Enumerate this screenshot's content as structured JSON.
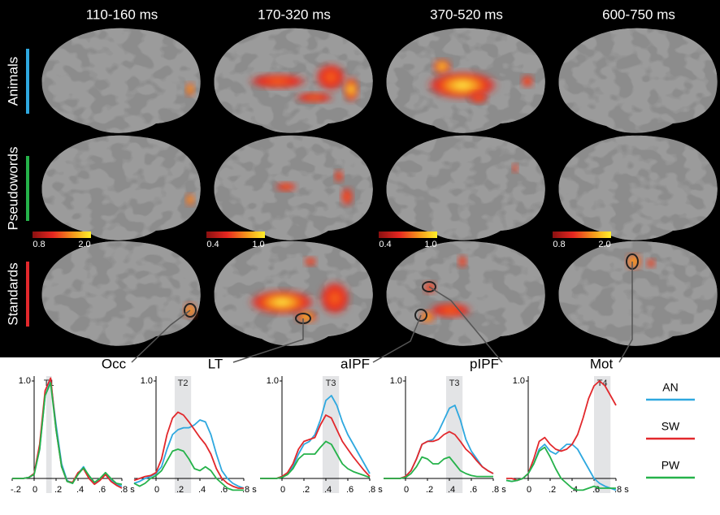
{
  "column_headers": [
    "110-160 ms",
    "170-320 ms",
    "370-520 ms",
    "600-750 ms"
  ],
  "row_labels": [
    {
      "text": "Animals",
      "color": "#2ea8df"
    },
    {
      "text": "Pseudowords",
      "color": "#25b24a"
    },
    {
      "text": "Standards",
      "color": "#e2282c"
    }
  ],
  "colorbars": [
    {
      "ticks": [
        0.8,
        {
          "value": 2,
          "label": "2.0"
        }
      ]
    },
    {
      "ticks": [
        0.4,
        {
          "value": 1,
          "label": "1.0"
        }
      ]
    },
    {
      "ticks": [
        0.4,
        {
          "value": 1,
          "label": "1.0"
        }
      ]
    },
    {
      "ticks": [
        0.8,
        {
          "value": 2,
          "label": "2.0"
        }
      ]
    }
  ],
  "legend": [
    {
      "name": "AN",
      "color": "#2ea8df"
    },
    {
      "name": "SW",
      "color": "#e2282c"
    },
    {
      "name": "PW",
      "color": "#25b24a"
    }
  ],
  "chart_data": [
    {
      "type": "line",
      "title": "Occ",
      "shade": {
        "label": "T1",
        "range": [
          0.11,
          0.16
        ]
      },
      "x": [
        -0.2,
        -0.15,
        -0.1,
        -0.05,
        0,
        0.05,
        0.1,
        0.15,
        0.2,
        0.25,
        0.3,
        0.35,
        0.4,
        0.45,
        0.5,
        0.55,
        0.6,
        0.65,
        0.7,
        0.75,
        0.8
      ],
      "series": [
        {
          "color": "#2ea8df",
          "values": [
            0,
            0,
            0,
            0.01,
            0.05,
            0.3,
            0.85,
            1.0,
            0.55,
            0.15,
            -0.02,
            -0.05,
            0.05,
            0.12,
            0.02,
            -0.05,
            0.0,
            0.05,
            -0.02,
            -0.06,
            -0.08
          ]
        },
        {
          "color": "#e2282c",
          "values": [
            0,
            0,
            0,
            0.01,
            0.05,
            0.35,
            0.9,
            1.03,
            0.5,
            0.12,
            -0.03,
            -0.04,
            0.06,
            0.1,
            0.0,
            -0.06,
            -0.02,
            0.04,
            -0.03,
            -0.07,
            -0.1
          ]
        },
        {
          "color": "#25b24a",
          "values": [
            0,
            0,
            0,
            0.01,
            0.04,
            0.3,
            0.85,
            0.98,
            0.5,
            0.12,
            -0.03,
            -0.05,
            0.04,
            0.11,
            0.03,
            -0.04,
            0.0,
            0.06,
            0.0,
            -0.05,
            -0.06
          ]
        }
      ],
      "xlim": [
        -0.2,
        0.8
      ],
      "ylim": [
        -0.15,
        1.05
      ],
      "xticks": [
        {
          "value": -0.2,
          "label": "-.2"
        },
        0,
        {
          "value": 0.2,
          "label": ".2"
        },
        {
          "value": 0.4,
          "label": ".4"
        },
        {
          "value": 0.6,
          "label": ".6"
        },
        {
          "value": 0.8,
          "label": ".8 s"
        }
      ],
      "yticks": [
        {
          "value": 1,
          "label": "1.0"
        }
      ]
    },
    {
      "type": "line",
      "title": "LT",
      "shade": {
        "label": "T2",
        "range": [
          0.17,
          0.32
        ]
      },
      "x": [
        -0.2,
        -0.15,
        -0.1,
        -0.05,
        0,
        0.05,
        0.1,
        0.15,
        0.2,
        0.25,
        0.3,
        0.35,
        0.4,
        0.45,
        0.5,
        0.55,
        0.6,
        0.65,
        0.7,
        0.75,
        0.8
      ],
      "series": [
        {
          "color": "#2ea8df",
          "values": [
            -0.05,
            -0.03,
            0,
            0.02,
            0.05,
            0.12,
            0.3,
            0.45,
            0.5,
            0.52,
            0.52,
            0.55,
            0.6,
            0.58,
            0.45,
            0.25,
            0.08,
            0.0,
            -0.05,
            -0.08,
            -0.1
          ]
        },
        {
          "color": "#e2282c",
          "values": [
            -0.02,
            0,
            0.02,
            0.03,
            0.06,
            0.2,
            0.45,
            0.62,
            0.68,
            0.65,
            0.58,
            0.5,
            0.42,
            0.35,
            0.25,
            0.1,
            0.0,
            -0.05,
            -0.08,
            -0.1,
            -0.1
          ]
        },
        {
          "color": "#25b24a",
          "values": [
            -0.05,
            -0.08,
            -0.05,
            0,
            0.03,
            0.08,
            0.18,
            0.28,
            0.3,
            0.28,
            0.2,
            0.1,
            0.08,
            0.12,
            0.08,
            0.0,
            -0.05,
            -0.1,
            -0.12,
            -0.12,
            -0.12
          ]
        }
      ],
      "xlim": [
        -0.2,
        0.8
      ],
      "ylim": [
        -0.15,
        1.05
      ],
      "xticks": [
        0,
        {
          "value": 0.2,
          "label": ".2"
        },
        {
          "value": 0.4,
          "label": ".4"
        },
        {
          "value": 0.6,
          "label": ".6"
        },
        {
          "value": 0.8,
          "label": ".8 s"
        }
      ],
      "yticks": [
        {
          "value": 1,
          "label": "1.0"
        }
      ]
    },
    {
      "type": "line",
      "title": "aIPF",
      "shade": {
        "label": "T3",
        "range": [
          0.37,
          0.52
        ]
      },
      "x": [
        -0.2,
        -0.15,
        -0.1,
        -0.05,
        0,
        0.05,
        0.1,
        0.15,
        0.2,
        0.25,
        0.3,
        0.35,
        0.4,
        0.45,
        0.5,
        0.55,
        0.6,
        0.65,
        0.7,
        0.75,
        0.8
      ],
      "series": [
        {
          "color": "#2ea8df",
          "values": [
            0,
            0,
            0,
            0,
            0.02,
            0.05,
            0.12,
            0.25,
            0.35,
            0.38,
            0.45,
            0.6,
            0.8,
            0.85,
            0.75,
            0.58,
            0.45,
            0.35,
            0.25,
            0.15,
            0.05
          ]
        },
        {
          "color": "#e2282c",
          "values": [
            0,
            0,
            0,
            0,
            0.02,
            0.06,
            0.15,
            0.3,
            0.38,
            0.4,
            0.42,
            0.55,
            0.65,
            0.62,
            0.5,
            0.38,
            0.3,
            0.22,
            0.15,
            0.08,
            0.02
          ]
        },
        {
          "color": "#25b24a",
          "values": [
            0,
            0,
            0,
            0,
            0.01,
            0.04,
            0.1,
            0.2,
            0.25,
            0.25,
            0.25,
            0.32,
            0.38,
            0.35,
            0.25,
            0.15,
            0.1,
            0.07,
            0.05,
            0.03,
            0.01
          ]
        }
      ],
      "xlim": [
        -0.2,
        0.8
      ],
      "ylim": [
        -0.15,
        1.05
      ],
      "xticks": [
        0,
        {
          "value": 0.2,
          "label": ".2"
        },
        {
          "value": 0.4,
          "label": ".4"
        },
        {
          "value": 0.6,
          "label": ".6"
        },
        {
          "value": 0.8,
          "label": ".8 s"
        }
      ],
      "yticks": [
        {
          "value": 1,
          "label": "1.0"
        }
      ]
    },
    {
      "type": "line",
      "title": "pIPF",
      "shade": {
        "label": "T3",
        "range": [
          0.37,
          0.52
        ]
      },
      "x": [
        -0.2,
        -0.15,
        -0.1,
        -0.05,
        0,
        0.05,
        0.1,
        0.15,
        0.2,
        0.25,
        0.3,
        0.35,
        0.4,
        0.45,
        0.5,
        0.55,
        0.6,
        0.65,
        0.7,
        0.75,
        0.8
      ],
      "series": [
        {
          "color": "#2ea8df",
          "values": [
            0,
            0,
            0,
            0,
            0.02,
            0.08,
            0.2,
            0.35,
            0.38,
            0.4,
            0.48,
            0.6,
            0.72,
            0.75,
            0.6,
            0.4,
            0.28,
            0.2,
            0.12,
            0.08,
            0.05
          ]
        },
        {
          "color": "#e2282c",
          "values": [
            0,
            0,
            0,
            0,
            0.02,
            0.08,
            0.2,
            0.35,
            0.38,
            0.38,
            0.4,
            0.45,
            0.48,
            0.45,
            0.38,
            0.3,
            0.25,
            0.18,
            0.12,
            0.08,
            0.05
          ]
        },
        {
          "color": "#25b24a",
          "values": [
            0,
            0,
            0,
            0,
            0.01,
            0.05,
            0.12,
            0.22,
            0.2,
            0.15,
            0.15,
            0.2,
            0.22,
            0.15,
            0.08,
            0.05,
            0.03,
            0.02,
            0.02,
            0.02,
            0.02
          ]
        }
      ],
      "xlim": [
        -0.2,
        0.8
      ],
      "ylim": [
        -0.15,
        1.05
      ],
      "xticks": [
        0,
        {
          "value": 0.2,
          "label": ".2"
        },
        {
          "value": 0.4,
          "label": ".4"
        },
        {
          "value": 0.6,
          "label": ".6"
        },
        {
          "value": 0.8,
          "label": ".8 s"
        }
      ],
      "yticks": [
        {
          "value": 1,
          "label": "1.0"
        }
      ]
    },
    {
      "type": "line",
      "title": "Mot",
      "shade": {
        "label": "T4",
        "range": [
          0.6,
          0.75
        ]
      },
      "x": [
        -0.2,
        -0.15,
        -0.1,
        -0.05,
        0,
        0.05,
        0.1,
        0.15,
        0.2,
        0.25,
        0.3,
        0.35,
        0.4,
        0.45,
        0.5,
        0.55,
        0.6,
        0.65,
        0.7,
        0.75,
        0.8
      ],
      "series": [
        {
          "color": "#2ea8df",
          "values": [
            -0.02,
            -0.03,
            -0.02,
            0,
            0.05,
            0.15,
            0.3,
            0.35,
            0.28,
            0.25,
            0.3,
            0.35,
            0.35,
            0.3,
            0.2,
            0.1,
            0.0,
            -0.05,
            -0.08,
            -0.1,
            -0.12
          ]
        },
        {
          "color": "#e2282c",
          "values": [
            0,
            0,
            -0.02,
            0,
            0.05,
            0.2,
            0.38,
            0.42,
            0.35,
            0.3,
            0.28,
            0.3,
            0.35,
            0.45,
            0.62,
            0.82,
            0.95,
            1.0,
            0.95,
            0.85,
            0.75
          ]
        },
        {
          "color": "#25b24a",
          "values": [
            -0.02,
            -0.03,
            -0.02,
            0,
            0.05,
            0.15,
            0.28,
            0.32,
            0.22,
            0.1,
            0.0,
            -0.05,
            -0.1,
            -0.12,
            -0.12,
            -0.1,
            -0.08,
            -0.1,
            -0.1,
            -0.1,
            -0.1
          ]
        }
      ],
      "xlim": [
        -0.2,
        0.8
      ],
      "ylim": [
        -0.15,
        1.05
      ],
      "xticks": [
        0,
        {
          "value": 0.2,
          "label": ".2"
        },
        {
          "value": 0.4,
          "label": ".4"
        },
        {
          "value": 0.6,
          "label": ".6"
        },
        {
          "value": 0.8,
          "label": ".8 s"
        }
      ],
      "yticks": [
        {
          "value": 1,
          "label": "1.0"
        }
      ]
    }
  ]
}
